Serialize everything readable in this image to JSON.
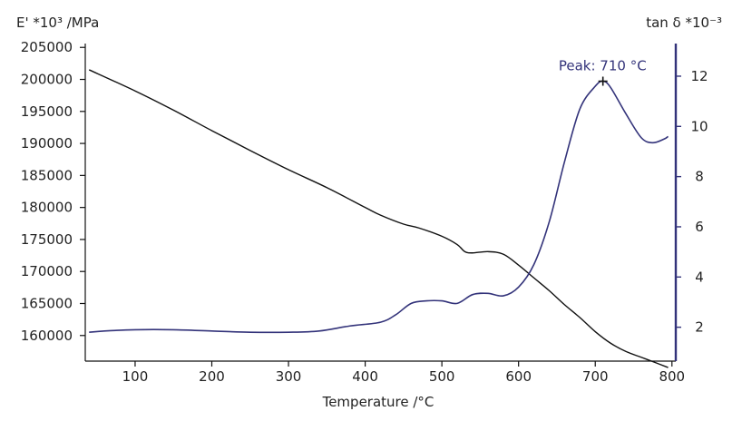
{
  "chart_data": {
    "type": "line",
    "xlabel": "Temperature /°C",
    "ylabel_left": "E' *10³ /MPa",
    "ylabel_right": "tan δ *10⁻³",
    "xlim": [
      35,
      805
    ],
    "ylim_left": [
      156000,
      205600
    ],
    "ylim_right": [
      0.65,
      13.3
    ],
    "x_ticks": [
      100,
      200,
      300,
      400,
      500,
      600,
      700,
      800
    ],
    "y_left_ticks": [
      160000,
      165000,
      170000,
      175000,
      180000,
      185000,
      190000,
      195000,
      200000,
      205000
    ],
    "y_right_ticks": [
      2,
      4,
      6,
      8,
      10,
      12
    ],
    "grid": false,
    "colors": {
      "e_prime": "#111111",
      "tan_delta": "#33337a",
      "axis": "#111111",
      "right_axis": "#33337a"
    },
    "series": [
      {
        "axis": "left",
        "x": [
          40,
          100,
          150,
          200,
          250,
          300,
          350,
          400,
          420,
          450,
          470,
          500,
          520,
          530,
          540,
          560,
          580,
          600,
          620,
          640,
          660,
          680,
          700,
          720,
          740,
          760,
          780,
          795
        ],
        "values": [
          201500,
          198200,
          195200,
          192000,
          188900,
          185900,
          183100,
          180000,
          178800,
          177400,
          176800,
          175500,
          174200,
          173100,
          172900,
          173100,
          172700,
          171000,
          169000,
          167000,
          164800,
          162800,
          160600,
          158800,
          157500,
          156600,
          155700,
          155000
        ]
      },
      {
        "axis": "right",
        "x": [
          40,
          60,
          100,
          150,
          200,
          250,
          300,
          340,
          380,
          420,
          440,
          460,
          480,
          500,
          520,
          540,
          560,
          580,
          600,
          620,
          640,
          660,
          680,
          700,
          710,
          720,
          740,
          760,
          775,
          790,
          795
        ],
        "values": [
          1.8,
          1.85,
          1.9,
          1.9,
          1.85,
          1.8,
          1.8,
          1.85,
          2.05,
          2.2,
          2.5,
          2.95,
          3.05,
          3.05,
          2.95,
          3.3,
          3.35,
          3.25,
          3.6,
          4.5,
          6.2,
          8.6,
          10.7,
          11.6,
          11.8,
          11.55,
          10.5,
          9.55,
          9.35,
          9.5,
          9.6
        ]
      }
    ],
    "peak": {
      "label": "Peak: 710 °C",
      "x": 710,
      "y": 11.8
    }
  }
}
